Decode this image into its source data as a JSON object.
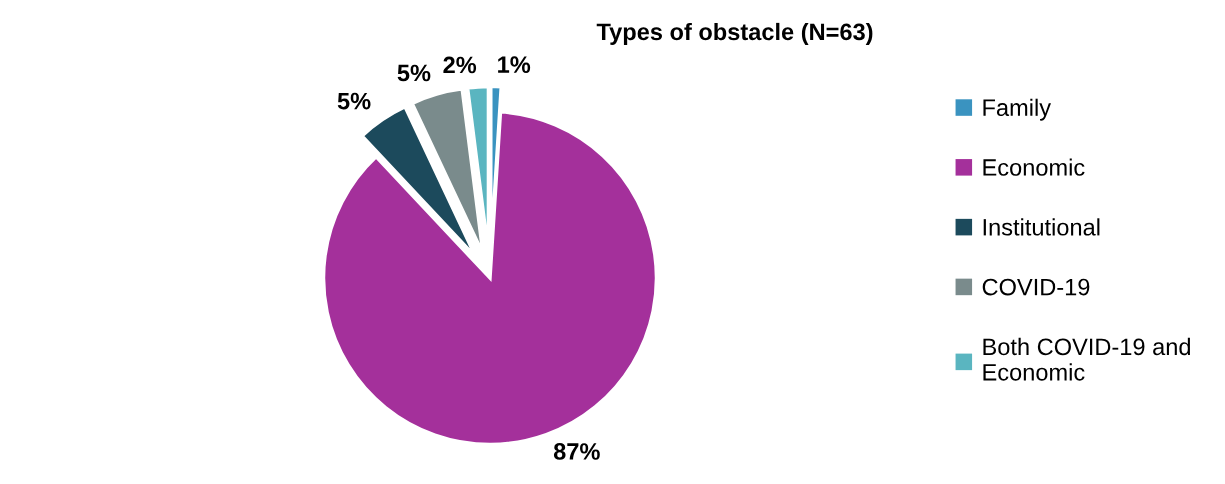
{
  "chart_data": {
    "type": "pie",
    "title": "Types of obstacle (N=63)",
    "categories": [
      "Family",
      "Economic",
      "Institutional",
      "COVID-19",
      "Both COVID-19 and\nEconomic"
    ],
    "values": [
      1,
      87,
      5,
      5,
      2
    ],
    "colors": [
      "#3a93c0",
      "#a4309b",
      "#1c4a5c",
      "#7a8b8c",
      "#5ab5c0"
    ],
    "value_labels": [
      "1%",
      "87%",
      "5%",
      "5%",
      "2%"
    ],
    "legend": "right"
  }
}
